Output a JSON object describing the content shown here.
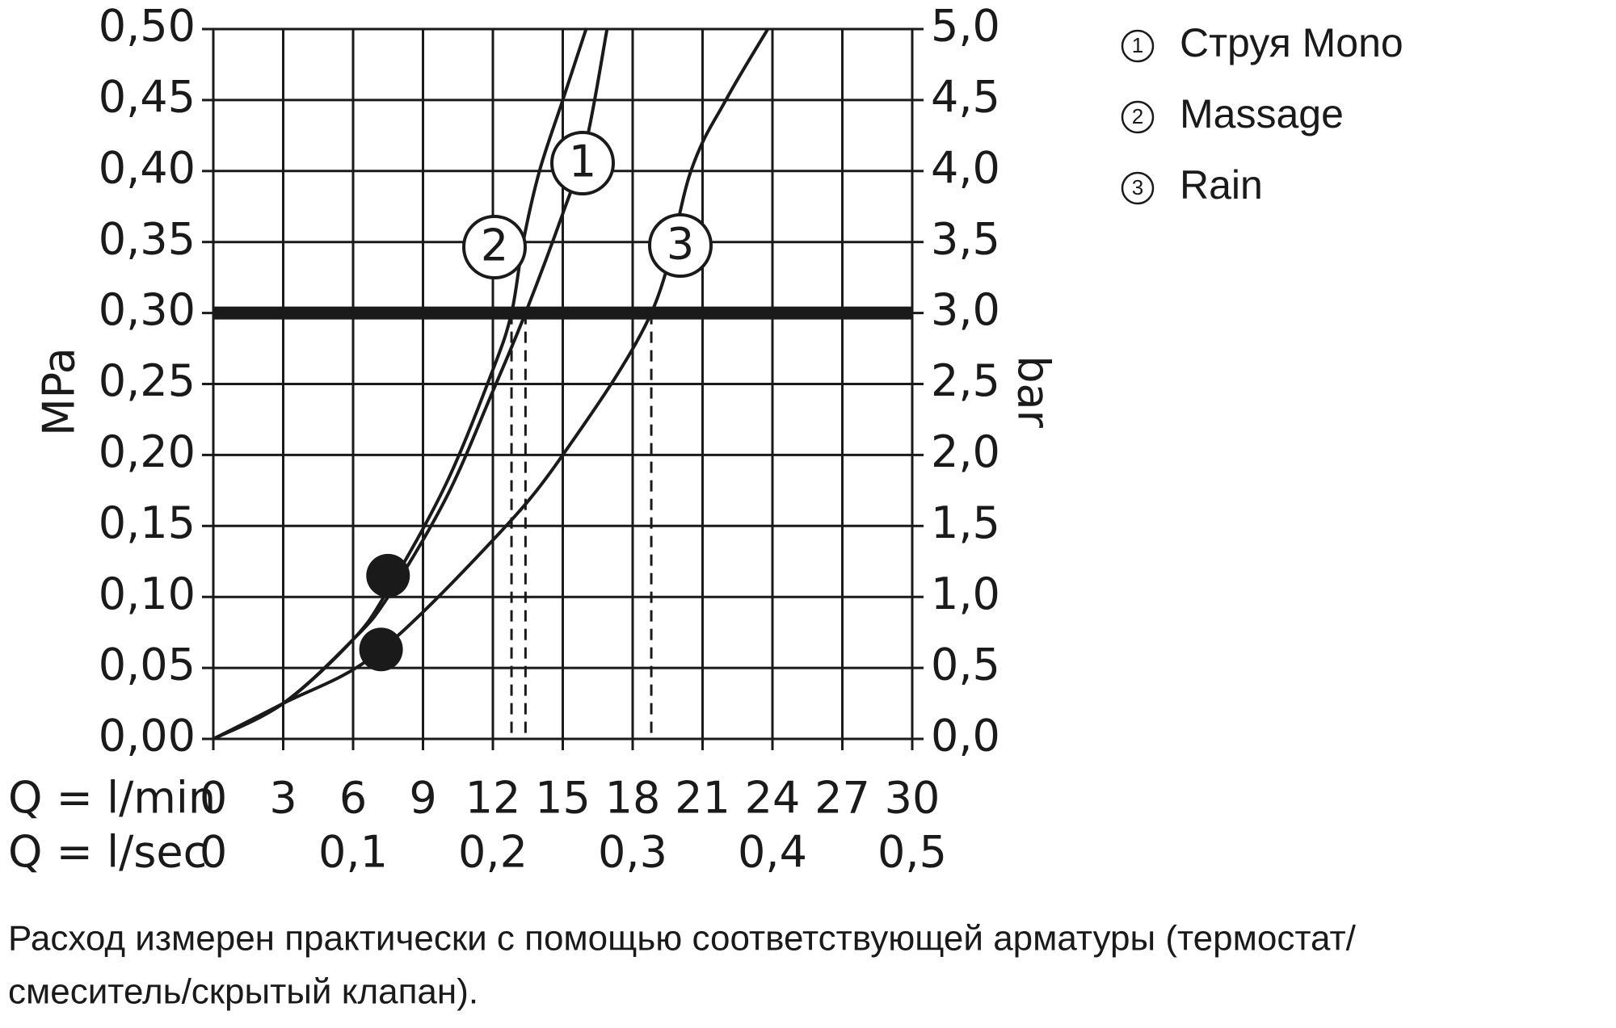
{
  "chart_data": {
    "type": "line",
    "ylabel": "MPa",
    "y2label": "bar",
    "xlabel": "Q = l/min",
    "x2label": "Q = l/sec",
    "xlim": [
      0,
      30
    ],
    "xticks": [
      0,
      3,
      6,
      9,
      12,
      15,
      18,
      21,
      24,
      27,
      30
    ],
    "x2lim": [
      0,
      0.5
    ],
    "x2ticks": [
      0,
      {
        "value": 0.1,
        "label": "0,1"
      },
      {
        "value": 0.2,
        "label": "0,2"
      },
      {
        "value": 0.3,
        "label": "0,3"
      },
      {
        "value": 0.4,
        "label": "0,4"
      },
      {
        "value": 0.5,
        "label": "0,5"
      }
    ],
    "ylim": [
      0,
      0.5
    ],
    "yticks": [
      {
        "value": 0,
        "label": "0,00"
      },
      {
        "value": 0.05,
        "label": "0,05"
      },
      {
        "value": 0.1,
        "label": "0,10"
      },
      {
        "value": 0.15,
        "label": "0,15"
      },
      {
        "value": 0.2,
        "label": "0,20"
      },
      {
        "value": 0.25,
        "label": "0,25"
      },
      {
        "value": 0.3,
        "label": "0,30"
      },
      {
        "value": 0.35,
        "label": "0,35"
      },
      {
        "value": 0.4,
        "label": "0,40"
      },
      {
        "value": 0.45,
        "label": "0,45"
      },
      {
        "value": 0.5,
        "label": "0,50"
      }
    ],
    "y2lim": [
      0,
      5
    ],
    "y2ticks": [
      {
        "value": 0,
        "label": "0,0"
      },
      {
        "value": 0.5,
        "label": "0,5"
      },
      {
        "value": 1,
        "label": "1,0"
      },
      {
        "value": 1.5,
        "label": "1,5"
      },
      {
        "value": 2,
        "label": "2,0"
      },
      {
        "value": 2.5,
        "label": "2,5"
      },
      {
        "value": 3,
        "label": "3,0"
      },
      {
        "value": 3.5,
        "label": "3,5"
      },
      {
        "value": 4,
        "label": "4,0"
      },
      {
        "value": 4.5,
        "label": "4,5"
      },
      {
        "value": 5,
        "label": "5,0"
      }
    ],
    "grid": true,
    "reference_line": 0.3,
    "drop_lines_x": [
      12.8,
      13.4,
      18.8
    ],
    "min_flow_points": {
      "x": [
        7.5,
        7.2
      ],
      "y": [
        0.115,
        0.063
      ]
    },
    "series": [
      {
        "name": "Струя Mono",
        "marker_label": "1",
        "color": "#1a1a1a",
        "x": [
          0,
          3,
          6,
          7.5,
          10,
          12,
          13.4,
          15,
          16,
          16.9
        ],
        "values": [
          0,
          0.025,
          0.07,
          0.1,
          0.17,
          0.245,
          0.3,
          0.37,
          0.42,
          0.5
        ]
      },
      {
        "name": "Massage",
        "marker_label": "2",
        "color": "#1a1a1a",
        "x": [
          0,
          3,
          6,
          7.5,
          10,
          12,
          12.8,
          13.3,
          14,
          15,
          16
        ],
        "values": [
          0,
          0.025,
          0.07,
          0.105,
          0.18,
          0.26,
          0.3,
          0.35,
          0.4,
          0.45,
          0.5
        ]
      },
      {
        "name": "Rain",
        "marker_label": "3",
        "color": "#1a1a1a",
        "x": [
          0,
          3,
          7,
          12,
          15,
          18.8,
          20.5,
          22,
          23.8
        ],
        "values": [
          0,
          0.025,
          0.06,
          0.14,
          0.2,
          0.3,
          0.4,
          0.45,
          0.5
        ]
      }
    ],
    "note": [
      "Расход измерен практически с помощью соответствующей арматуры (термостат/",
      "смеситель/скрытый клапан)."
    ]
  }
}
